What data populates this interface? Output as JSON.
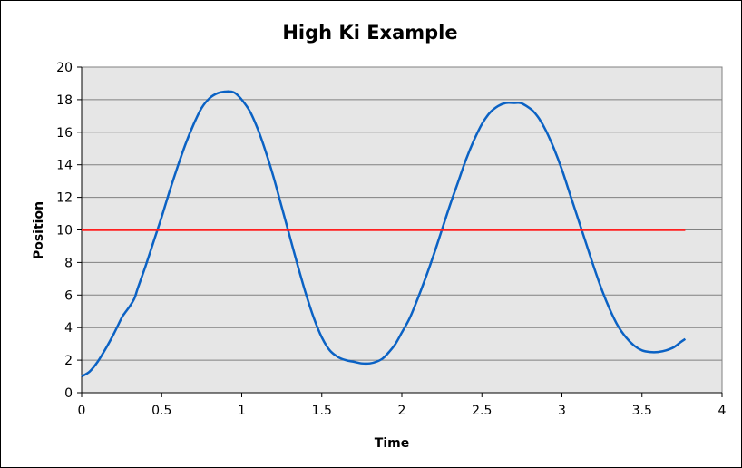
{
  "chart_data": {
    "type": "line",
    "title": "High Ki Example",
    "xlabel": "Time",
    "ylabel": "Position",
    "xlim": [
      0,
      4
    ],
    "ylim": [
      0,
      20
    ],
    "x_ticks": [
      "0",
      "0.5",
      "1",
      "1.5",
      "2",
      "2.5",
      "3",
      "3.5",
      "4"
    ],
    "y_ticks": [
      "0",
      "2",
      "4",
      "6",
      "8",
      "10",
      "12",
      "14",
      "16",
      "18",
      "20"
    ],
    "grid": "horizontal",
    "legend": "none",
    "plot_background": "#e6e6e6",
    "series": [
      {
        "color": "#0b62c4",
        "x": [
          0,
          0.05,
          0.1,
          0.15,
          0.2,
          0.25,
          0.27,
          0.3,
          0.33,
          0.35,
          0.4,
          0.45,
          0.5,
          0.55,
          0.6,
          0.65,
          0.7,
          0.75,
          0.8,
          0.85,
          0.9,
          0.93,
          0.96,
          1.0,
          1.05,
          1.1,
          1.15,
          1.2,
          1.25,
          1.3,
          1.35,
          1.4,
          1.45,
          1.5,
          1.55,
          1.6,
          1.65,
          1.7,
          1.75,
          1.8,
          1.84,
          1.88,
          1.92,
          1.96,
          2.0,
          2.05,
          2.1,
          2.15,
          2.2,
          2.25,
          2.3,
          2.35,
          2.4,
          2.45,
          2.5,
          2.55,
          2.6,
          2.65,
          2.7,
          2.74,
          2.78,
          2.82,
          2.86,
          2.9,
          2.95,
          3.0,
          3.05,
          3.1,
          3.15,
          3.2,
          3.25,
          3.3,
          3.35,
          3.4,
          3.45,
          3.5,
          3.55,
          3.6,
          3.65,
          3.7,
          3.74,
          3.77
        ],
        "y": [
          1.0,
          1.3,
          1.9,
          2.7,
          3.6,
          4.6,
          4.9,
          5.3,
          5.8,
          6.4,
          7.8,
          9.3,
          10.8,
          12.4,
          13.9,
          15.3,
          16.5,
          17.5,
          18.1,
          18.4,
          18.5,
          18.5,
          18.4,
          18.0,
          17.3,
          16.2,
          14.8,
          13.2,
          11.4,
          9.6,
          7.8,
          6.1,
          4.6,
          3.4,
          2.6,
          2.2,
          2.0,
          1.9,
          1.8,
          1.8,
          1.9,
          2.1,
          2.5,
          3.0,
          3.7,
          4.6,
          5.8,
          7.1,
          8.5,
          10.0,
          11.5,
          12.9,
          14.3,
          15.5,
          16.5,
          17.2,
          17.6,
          17.8,
          17.8,
          17.8,
          17.6,
          17.3,
          16.8,
          16.1,
          15.0,
          13.7,
          12.2,
          10.7,
          9.2,
          7.7,
          6.3,
          5.1,
          4.1,
          3.4,
          2.9,
          2.6,
          2.5,
          2.5,
          2.6,
          2.8,
          3.1,
          3.3
        ]
      },
      {
        "color": "#ff2020",
        "x": [
          0,
          3.77
        ],
        "y": [
          10,
          10
        ]
      }
    ]
  }
}
